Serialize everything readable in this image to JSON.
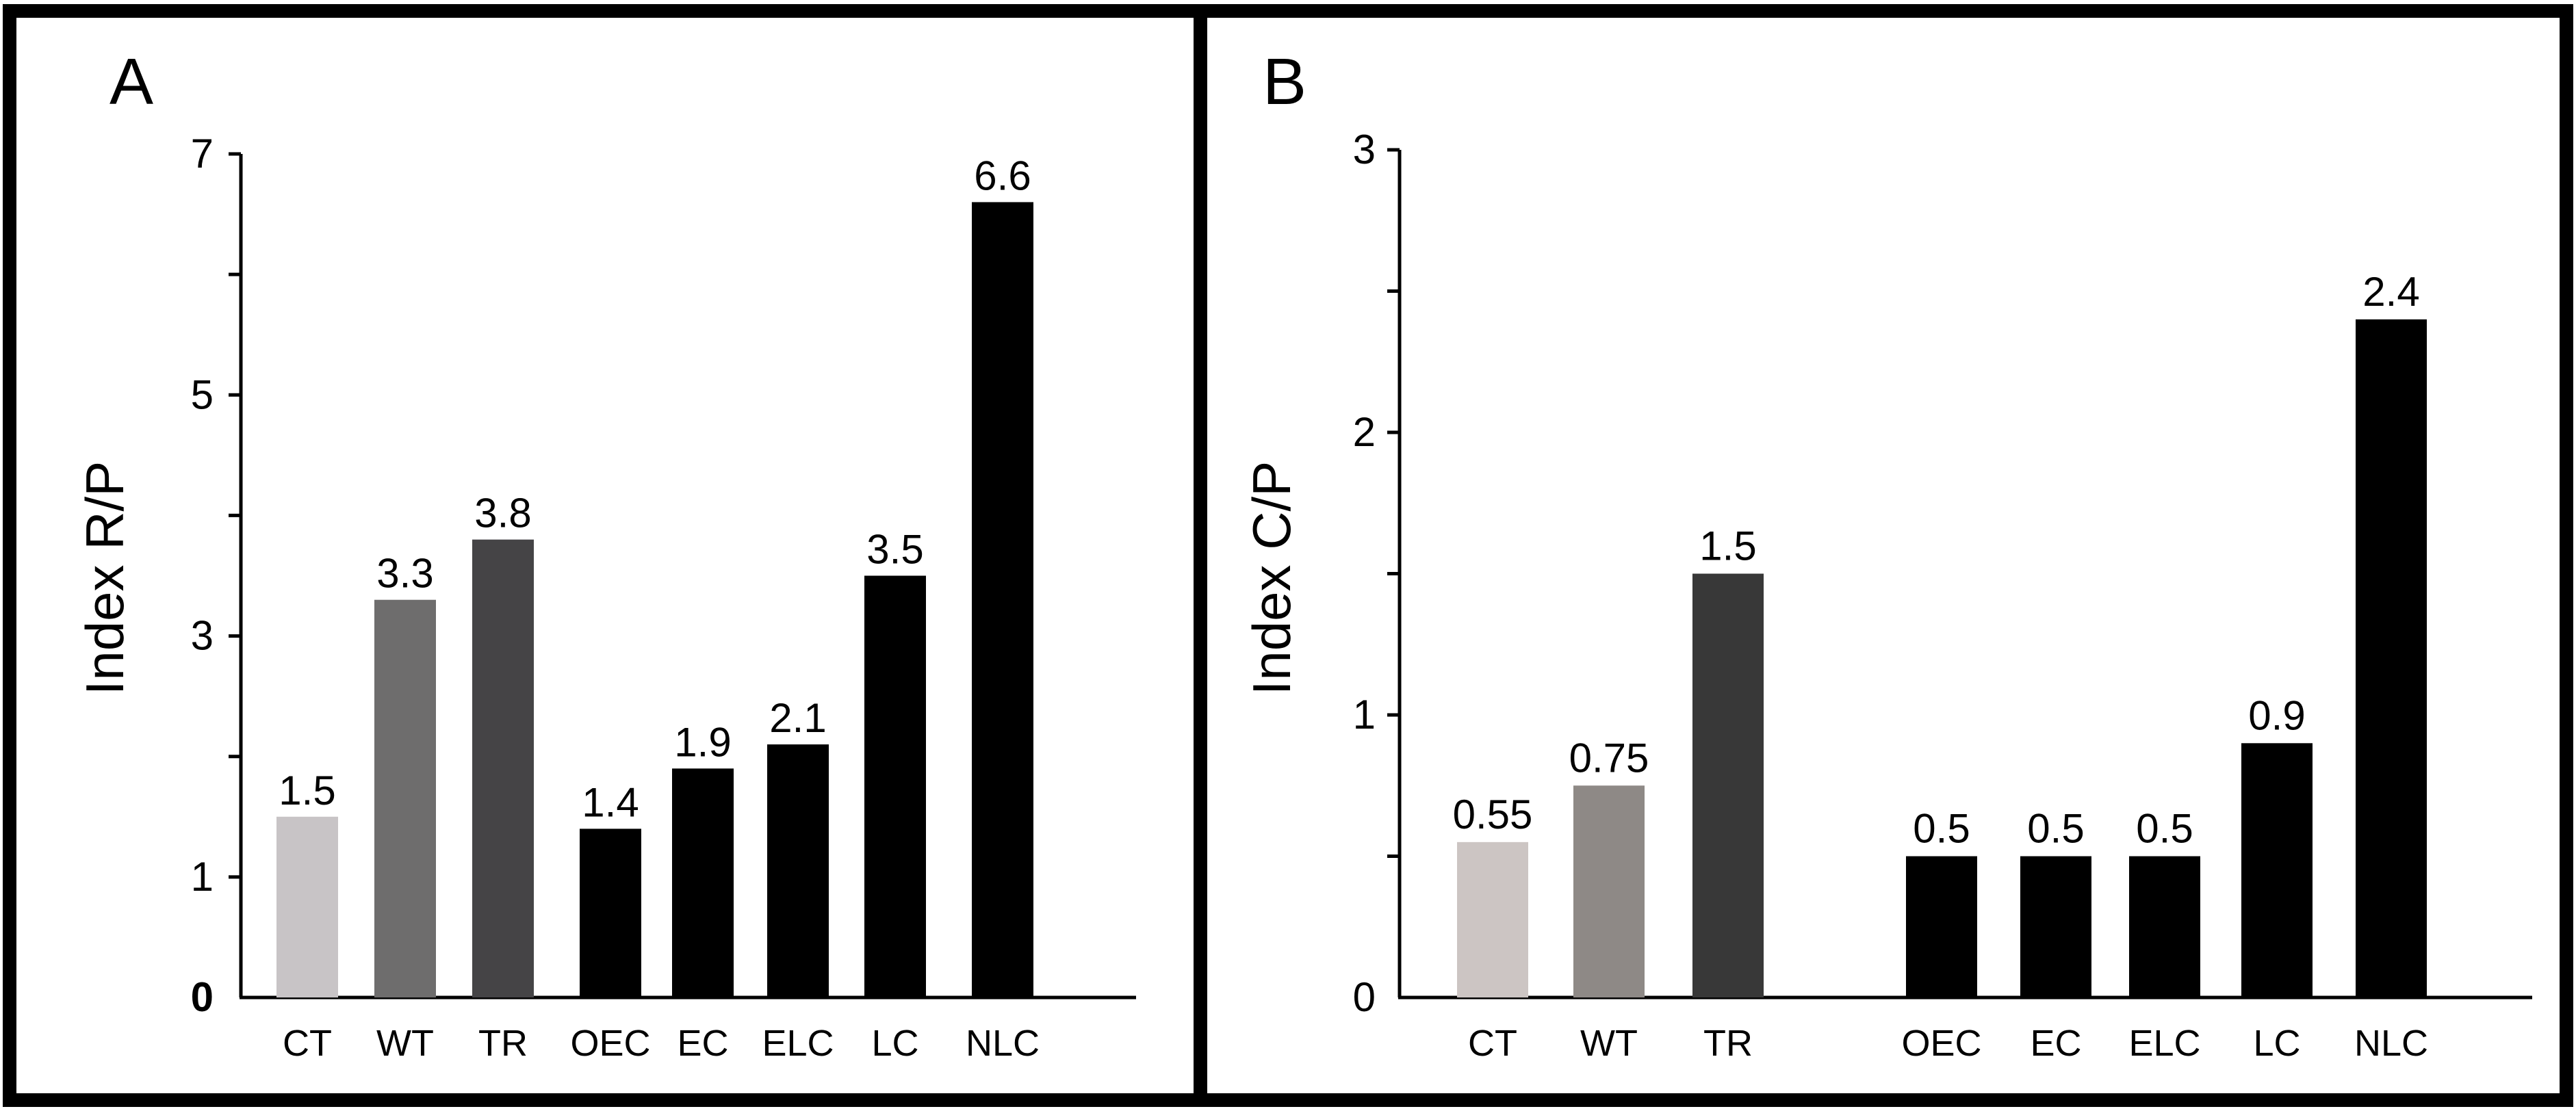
{
  "chart_data": [
    {
      "type": "bar",
      "panel": "A",
      "ylabel": "Index R/P",
      "yticks": [
        "0",
        "1",
        "3",
        "5",
        "7"
      ],
      "ylim": [
        0,
        7
      ],
      "categories": [
        "CT",
        "WT",
        "TR",
        "OEC",
        "EC",
        "ELC",
        "LC",
        "NLC"
      ],
      "values": [
        1.5,
        3.3,
        3.8,
        1.4,
        1.9,
        2.1,
        3.5,
        6.6
      ],
      "labels": [
        "1.5",
        "3.3",
        "3.8",
        "1.4",
        "1.9",
        "2.1",
        "3.5",
        "6.6"
      ],
      "colors": [
        "#c8c4c6",
        "#6e6d6d",
        "#454446",
        "#000000",
        "#000000",
        "#000000",
        "#000000",
        "#000000"
      ]
    },
    {
      "type": "bar",
      "panel": "B",
      "ylabel": "Index C/P",
      "yticks": [
        "0",
        "1",
        "2",
        "3"
      ],
      "ylim": [
        0,
        3
      ],
      "categories": [
        "CT",
        "WT",
        "TR",
        "OEC",
        "EC",
        "ELC",
        "LC",
        "NLC"
      ],
      "values": [
        0.55,
        0.75,
        1.5,
        0.5,
        0.5,
        0.5,
        0.9,
        2.4
      ],
      "labels": [
        "0.55",
        "0.75",
        "1.5",
        "0.5",
        "0.5",
        "0.5",
        "0.9",
        "2.4"
      ],
      "colors": [
        "#ccc5c3",
        "#8e8986",
        "#383838",
        "#000000",
        "#000000",
        "#000000",
        "#000000",
        "#000000"
      ]
    }
  ]
}
